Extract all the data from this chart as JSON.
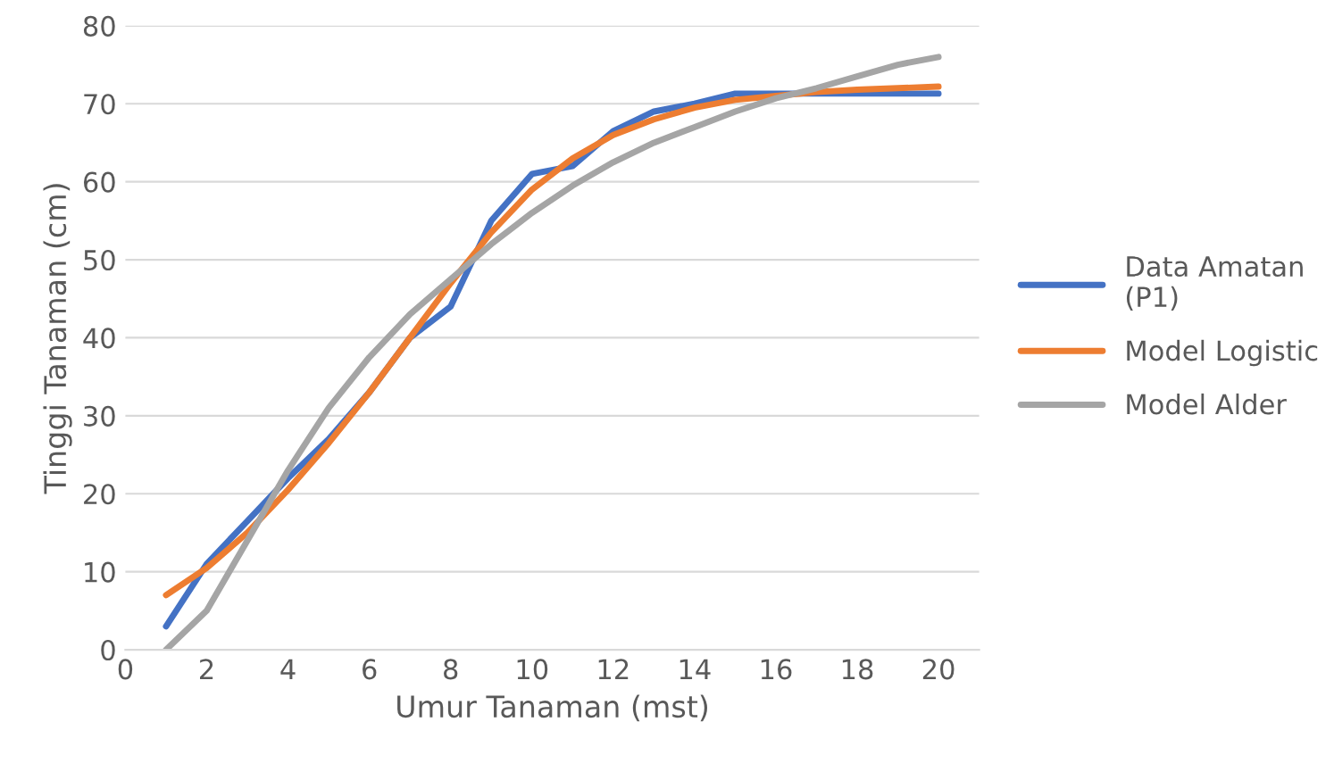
{
  "chart_data": {
    "type": "line",
    "xlabel": "Umur Tanaman (mst)",
    "ylabel": "Tinggi Tanaman (cm)",
    "x": [
      1,
      2,
      3,
      4,
      5,
      6,
      7,
      8,
      9,
      10,
      11,
      12,
      13,
      14,
      15,
      16,
      17,
      18,
      19,
      20
    ],
    "series": [
      {
        "name": "Data Amatan (P1)",
        "color": "#4472c4",
        "values": [
          3,
          11,
          16.5,
          22,
          27,
          33,
          40,
          44,
          55,
          61,
          62,
          66.5,
          69,
          70,
          71.3,
          71.3,
          71.3,
          71.3,
          71.3,
          71.3
        ]
      },
      {
        "name": "Model Logistic",
        "color": "#ed7d31",
        "values": [
          7,
          10.5,
          15,
          20.5,
          26.5,
          33,
          40,
          47,
          53.5,
          59,
          63,
          66,
          68,
          69.5,
          70.5,
          71,
          71.5,
          71.8,
          72,
          72.2
        ]
      },
      {
        "name": "Model Alder",
        "color": "#a5a5a5",
        "values": [
          0,
          5,
          14,
          23,
          31,
          37.5,
          43,
          47.5,
          52,
          56,
          59.5,
          62.5,
          65,
          67,
          69,
          70.7,
          72,
          73.5,
          75,
          76
        ]
      }
    ],
    "xlim": [
      0,
      21
    ],
    "xticks": [
      0,
      2,
      4,
      6,
      8,
      10,
      12,
      14,
      16,
      18,
      20
    ],
    "ylim": [
      0,
      80
    ],
    "yticks": [
      0,
      10,
      20,
      30,
      40,
      50,
      60,
      70,
      80
    ],
    "grid": "y",
    "legend": "right",
    "marker": "none",
    "line_style": "solid"
  }
}
